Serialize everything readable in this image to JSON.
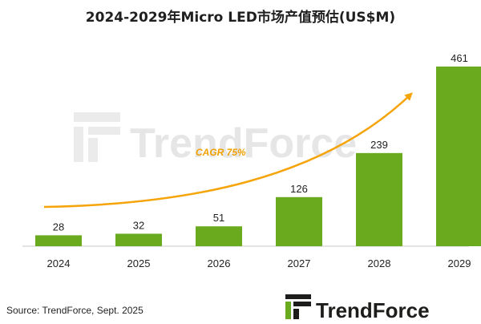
{
  "chart_data": {
    "type": "bar",
    "title": "2024-2029年Micro LED市场产值预估(US$M)",
    "categories": [
      "2024",
      "2025",
      "2026",
      "2027",
      "2028",
      "2029"
    ],
    "values": [
      28,
      32,
      51,
      126,
      239,
      461
    ],
    "ylim": [
      0,
      500
    ],
    "xlabel": "",
    "ylabel": "",
    "grid": false,
    "annotation": "CAGR 75%",
    "colors": {
      "bar": "#6aaa1e",
      "arrow": "#f5a40a",
      "brand_green": "#6aaa1e"
    }
  },
  "source": "Source: TrendForce, Sept. 2025",
  "brand": "TrendForce",
  "watermark": "TrendForce"
}
